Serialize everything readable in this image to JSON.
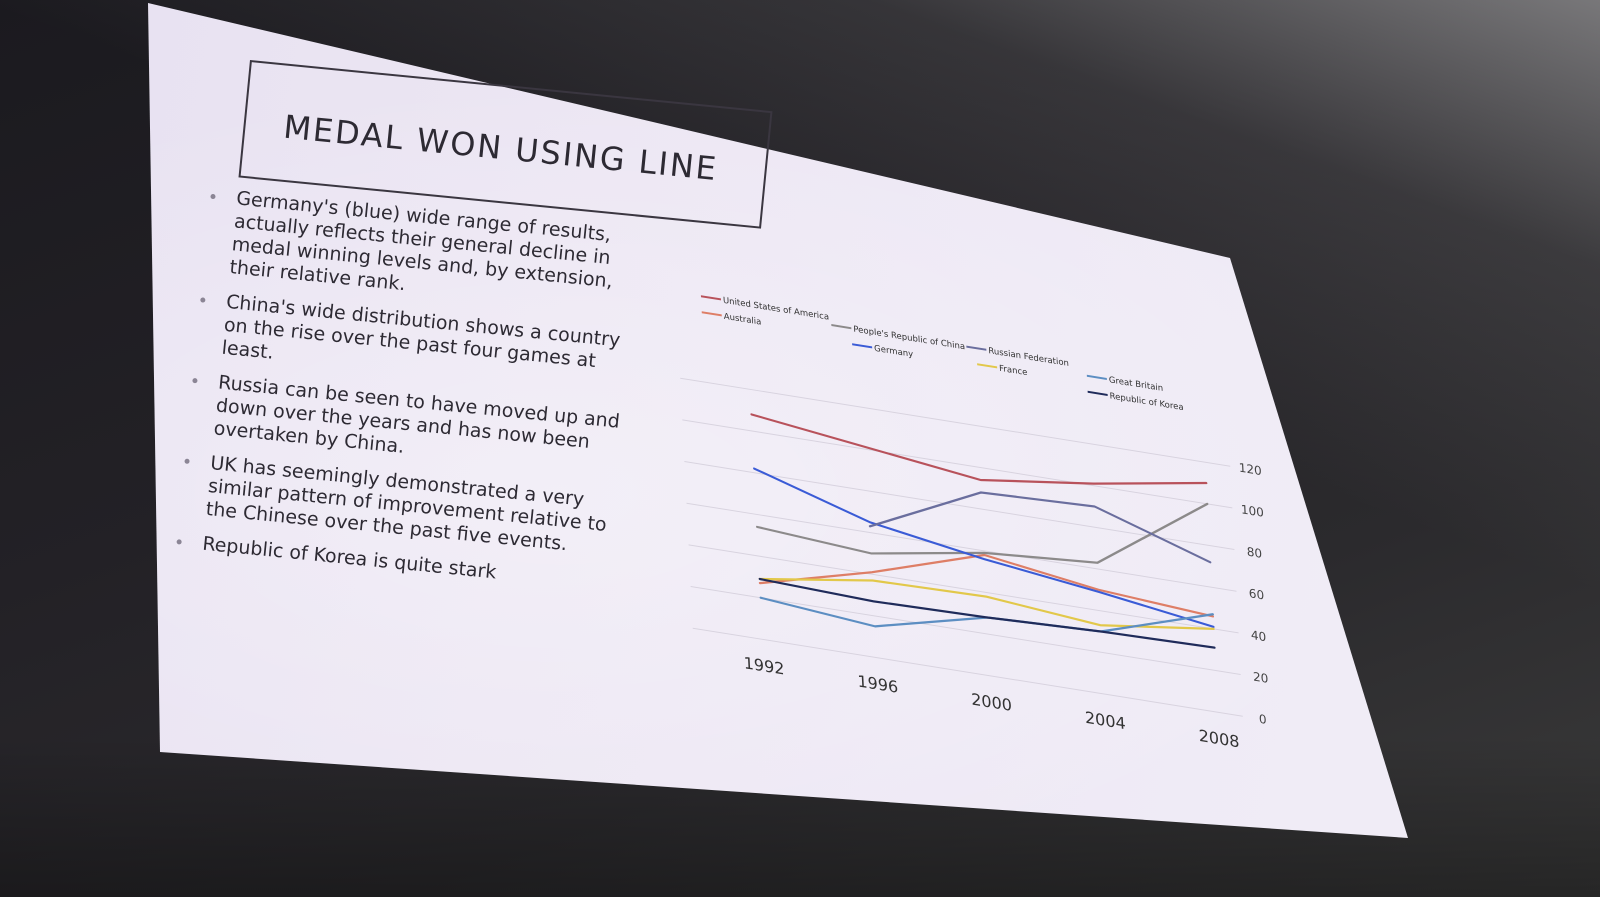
{
  "slide": {
    "title": "MEDAL WON USING LINE",
    "bullets": [
      "Germany's (blue) wide range of results, actually reflects their general decline in medal winning levels and, by extension, their relative rank.",
      "China's wide distribution shows a country on the rise over the past four games at least.",
      "Russia can be seen to have moved up and down over the years and has now been overtaken by China.",
      "UK has seemingly demonstrated a very similar pattern of improvement relative to the Chinese over the past five events.",
      "Republic of Korea is quite stark"
    ]
  },
  "chart_data": {
    "type": "line",
    "title": "",
    "xlabel": "",
    "ylabel": "",
    "categories": [
      "1992",
      "1996",
      "2000",
      "2004",
      "2008"
    ],
    "y_ticks": [
      "0",
      "20",
      "40",
      "60",
      "80",
      "100",
      "120"
    ],
    "ylim": [
      0,
      120
    ],
    "y_axis_side": "right",
    "grid": true,
    "legend_position": "top",
    "series": [
      {
        "name": "United States of America",
        "color": "#b8525b",
        "values": [
          108,
          101,
          94,
          101,
          110
        ]
      },
      {
        "name": "Australia",
        "color": "#de7e66",
        "values": [
          27,
          41,
          58,
          50,
          46
        ]
      },
      {
        "name": "People's Republic of China",
        "color": "#8c8a8a",
        "values": [
          54,
          50,
          59,
          63,
          100
        ]
      },
      {
        "name": "Germany",
        "color": "#3a5bd6",
        "values": [
          82,
          65,
          56,
          49,
          41
        ]
      },
      {
        "name": "Russian Federation",
        "color": "#6a6e9e",
        "values": [
          null,
          63,
          88,
          90,
          72
        ]
      },
      {
        "name": "France",
        "color": "#e2c84a",
        "values": [
          29,
          37,
          38,
          33,
          40
        ]
      },
      {
        "name": "Great Britain",
        "color": "#5c8ec2",
        "values": [
          20,
          15,
          28,
          30,
          47
        ]
      },
      {
        "name": "Republic of Korea",
        "color": "#1f2b5a",
        "values": [
          29,
          27,
          28,
          30,
          31
        ]
      }
    ]
  }
}
